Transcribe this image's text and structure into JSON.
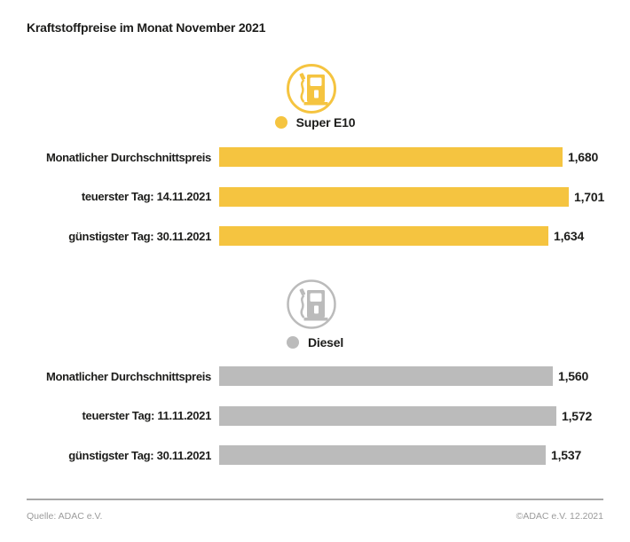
{
  "title": "Kraftstoffpreise im Monat November 2021",
  "colors": {
    "super_e10": "#F5C440",
    "diesel": "#BBBBBB",
    "text": "#1D1D1B",
    "footer_text": "#9B9B9B",
    "footer_line": "#A8A8A8"
  },
  "footer": {
    "source": "Quelle: ADAC e.V.",
    "copyright": "©ADAC e.V. 12.2021"
  },
  "chart_data": [
    {
      "type": "bar",
      "group": "Super E10",
      "legend_label": "Super E10",
      "legend_color": "#F5C440",
      "icon": "fuel-pump-icon",
      "categories": [
        "Monatlicher Durchschnittspreis",
        "teuerster Tag: 14.11.2021",
        "günstigster Tag: 30.11.2021"
      ],
      "values": [
        1.68,
        1.701,
        1.634
      ],
      "value_labels": [
        "1,680",
        "1,701",
        "1,634"
      ],
      "xlim": [
        0.53,
        1.72
      ],
      "orientation": "horizontal",
      "grid": false,
      "legend_position": "top-center"
    },
    {
      "type": "bar",
      "group": "Diesel",
      "legend_label": "Diesel",
      "legend_color": "#BBBBBB",
      "icon": "fuel-pump-icon",
      "categories": [
        "Monatlicher Durchschnittspreis",
        "teuerster Tag: 11.11.2021",
        "günstigster Tag: 30.11.2021"
      ],
      "values": [
        1.56,
        1.572,
        1.537
      ],
      "value_labels": [
        "1,560",
        "1,572",
        "1,537"
      ],
      "xlim": [
        0.46,
        1.63
      ],
      "orientation": "horizontal",
      "grid": false,
      "legend_position": "top-center"
    }
  ]
}
